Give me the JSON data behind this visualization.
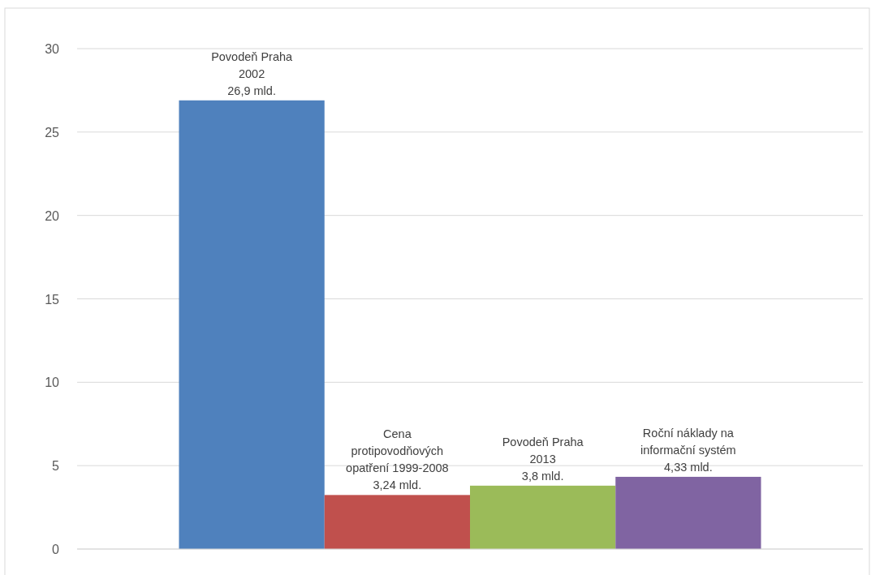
{
  "chart_data": {
    "type": "bar",
    "categories": [
      null
    ],
    "series": [
      {
        "name": "Povodeň Praha\n2002",
        "color": "#4f81bd",
        "values": [
          26.9
        ],
        "value_labels": [
          "26,9 mld."
        ]
      },
      {
        "name": "Cena\nprotipovodňových\nopatření 1999-2008",
        "color": "#c0504d",
        "values": [
          3.24
        ],
        "value_labels": [
          "3,24 mld."
        ]
      },
      {
        "name": "Povodeň Praha\n2013",
        "color": "#9bbb59",
        "values": [
          3.8
        ],
        "value_labels": [
          "3,8 mld."
        ]
      },
      {
        "name": "Roční náklady na\ninformační systém",
        "color": "#8064a2",
        "values": [
          4.33
        ],
        "value_labels": [
          "4,33 mld."
        ]
      }
    ],
    "ylim": [
      0,
      30
    ],
    "yticks": [
      0,
      5,
      10,
      15,
      20,
      25,
      30
    ],
    "grid": "y"
  }
}
